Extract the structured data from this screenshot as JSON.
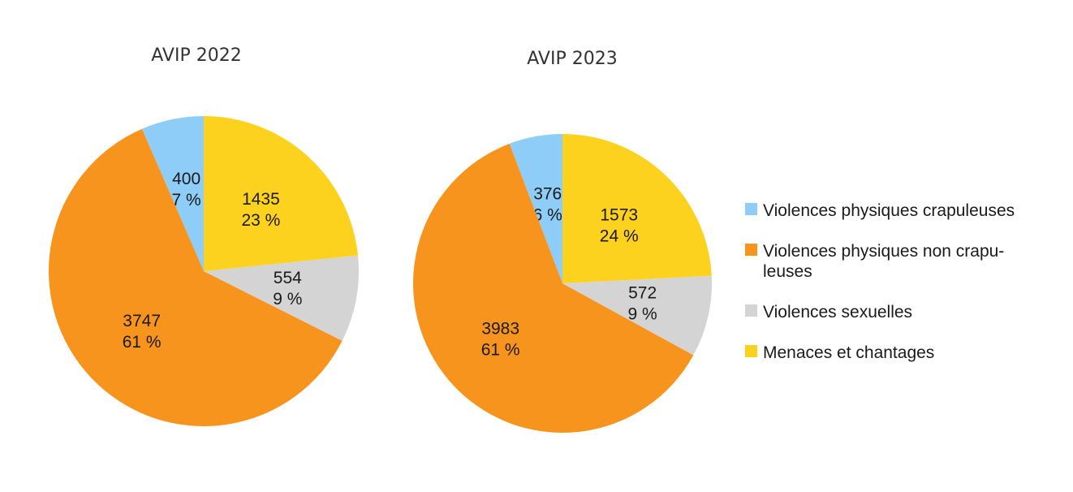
{
  "chart_data": [
    {
      "type": "pie",
      "title": "AVIP 2022",
      "slices": [
        {
          "category": "Violences physiques crapuleuses",
          "value": 400,
          "value_label": "400",
          "percent_label": "7 %"
        },
        {
          "category": "Violences physiques non crapuleuses",
          "value": 3747,
          "value_label": "3747",
          "percent_label": "61 %"
        },
        {
          "category": "Violences sexuelles",
          "value": 554,
          "value_label": "554",
          "percent_label": "9 %"
        },
        {
          "category": "Menaces et chantages",
          "value": 1435,
          "value_label": "1435",
          "percent_label": "23 %"
        }
      ]
    },
    {
      "type": "pie",
      "title": "AVIP 2023",
      "slices": [
        {
          "category": "Violences physiques crapuleuses",
          "value": 376,
          "value_label": "376",
          "percent_label": "6 %"
        },
        {
          "category": "Violences physiques non crapuleuses",
          "value": 3983,
          "value_label": "3983",
          "percent_label": "61 %"
        },
        {
          "category": "Violences sexuelles",
          "value": 572,
          "value_label": "572",
          "percent_label": "9 %"
        },
        {
          "category": "Menaces et chantages",
          "value": 1573,
          "value_label": "1573",
          "percent_label": "24 %"
        }
      ]
    }
  ],
  "legend": {
    "placement": "right",
    "items": [
      {
        "lines": [
          "Violences physiques crapuleuses"
        ],
        "color": "#8ecdf8"
      },
      {
        "lines": [
          "Violences physiques non crapu-",
          "leuses"
        ],
        "color": "#f7941d"
      },
      {
        "lines": [
          "Violences sexuelles"
        ],
        "color": "#d4d4d4"
      },
      {
        "lines": [
          "Menaces et chantages"
        ],
        "color": "#fdd21f"
      }
    ]
  },
  "colors": {
    "Violences physiques crapuleuses": "#8ecdf8",
    "Violences physiques non crapuleuses": "#f7941d",
    "Violences sexuelles": "#d4d4d4",
    "Menaces et chantages": "#fdd21f"
  }
}
